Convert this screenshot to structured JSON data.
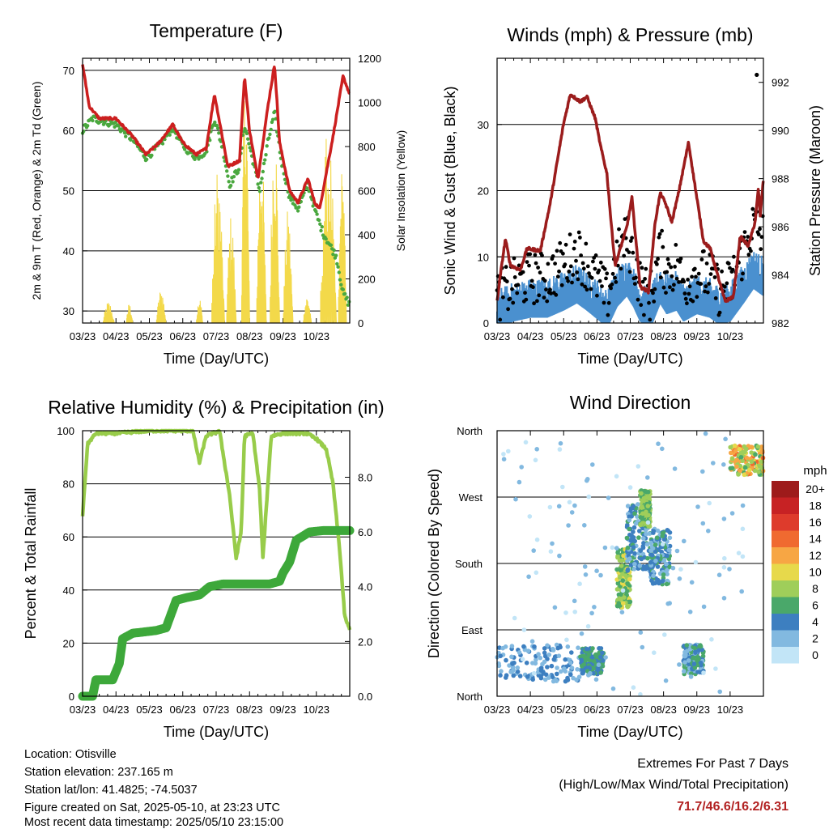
{
  "chart_data": [
    {
      "type": "line",
      "title": "Temperature (F)",
      "xlabel": "Time (Day/UTC)",
      "ylabel": "2m & 9m T (Red, Orange) & 2m Td (Green)",
      "ylabel_right": "Solar Insolation (Yellow)",
      "x": [
        "03/23",
        "04/23",
        "05/23",
        "06/23",
        "07/23",
        "08/23",
        "09/23",
        "10/23"
      ],
      "ylim": [
        28,
        72
      ],
      "yticks": [
        30,
        40,
        50,
        60,
        70
      ],
      "y2lim": [
        0,
        1200
      ],
      "y2ticks": [
        0,
        200,
        400,
        600,
        800,
        1000,
        1200
      ],
      "grid": true,
      "series": [
        {
          "name": "2m T",
          "color": "#cc1f1f",
          "values": [
            [
              0,
              71
            ],
            [
              0.2,
              64
            ],
            [
              0.5,
              62
            ],
            [
              1,
              62
            ],
            [
              1.5,
              59
            ],
            [
              1.9,
              56
            ],
            [
              2.3,
              58
            ],
            [
              2.7,
              61
            ],
            [
              3,
              58
            ],
            [
              3.4,
              56
            ],
            [
              3.7,
              57
            ],
            [
              3.95,
              66
            ],
            [
              4.15,
              60
            ],
            [
              4.35,
              54
            ],
            [
              4.7,
              55
            ],
            [
              4.85,
              69
            ],
            [
              5.0,
              60
            ],
            [
              5.25,
              52
            ],
            [
              5.55,
              64
            ],
            [
              5.75,
              71
            ],
            [
              5.9,
              58
            ],
            [
              6.2,
              50
            ],
            [
              6.45,
              48
            ],
            [
              6.75,
              52
            ],
            [
              6.95,
              48
            ],
            [
              7.1,
              47
            ],
            [
              7.5,
              59
            ],
            [
              7.8,
              69
            ],
            [
              8,
              66
            ]
          ]
        },
        {
          "name": "2m Td",
          "color": "#4aa83f",
          "values": [
            [
              0,
              60
            ],
            [
              0.3,
              62
            ],
            [
              1,
              61
            ],
            [
              1.5,
              58.5
            ],
            [
              1.9,
              55.5
            ],
            [
              2.3,
              57.5
            ],
            [
              2.7,
              60.5
            ],
            [
              3,
              57.5
            ],
            [
              3.4,
              55.5
            ],
            [
              3.7,
              56.5
            ],
            [
              3.95,
              62
            ],
            [
              4.2,
              57
            ],
            [
              4.4,
              51
            ],
            [
              4.7,
              54
            ],
            [
              4.85,
              61
            ],
            [
              5.1,
              55
            ],
            [
              5.3,
              50
            ],
            [
              5.55,
              58
            ],
            [
              5.75,
              63
            ],
            [
              5.95,
              55
            ],
            [
              6.2,
              49
            ],
            [
              6.45,
              47
            ],
            [
              6.75,
              51
            ],
            [
              7.0,
              46
            ],
            [
              7.2,
              43
            ],
            [
              7.4,
              41
            ],
            [
              7.6,
              39
            ],
            [
              7.8,
              33
            ],
            [
              8,
              31
            ]
          ]
        }
      ],
      "insolation_bursts": [
        [
          0.6,
          0.95,
          100
        ],
        [
          1.3,
          1.5,
          90
        ],
        [
          2.2,
          2.5,
          160
        ],
        [
          3.4,
          3.6,
          120
        ],
        [
          3.85,
          4.25,
          720
        ],
        [
          4.3,
          4.6,
          500
        ],
        [
          4.75,
          5.0,
          1160
        ],
        [
          5.2,
          5.5,
          850
        ],
        [
          5.6,
          5.9,
          950
        ],
        [
          6.0,
          6.3,
          520
        ],
        [
          6.6,
          6.85,
          130
        ],
        [
          7.1,
          7.6,
          900
        ],
        [
          7.65,
          7.9,
          720
        ]
      ]
    },
    {
      "type": "line",
      "title": "Winds (mph) & Pressure (mb)",
      "xlabel": "Time (Day/UTC)",
      "ylabel": "Sonic Wind & Gust (Blue, Black)",
      "ylabel_right": "Station Pressure (Maroon)",
      "x": [
        "03/23",
        "04/23",
        "05/23",
        "06/23",
        "07/23",
        "08/23",
        "09/23",
        "10/23"
      ],
      "ylim": [
        0,
        40
      ],
      "yticks": [
        0,
        10,
        20,
        30
      ],
      "y2lim": [
        982,
        993
      ],
      "y2ticks": [
        982,
        984,
        986,
        988,
        990,
        992
      ],
      "grid": true,
      "series": [
        {
          "name": "Station Pressure",
          "color": "#9b1c1c",
          "values": [
            [
              0,
              982.9
            ],
            [
              0.1,
              984
            ],
            [
              0.25,
              985.5
            ],
            [
              0.4,
              984.4
            ],
            [
              0.7,
              984.2
            ],
            [
              0.9,
              985.1
            ],
            [
              1.3,
              985
            ],
            [
              1.6,
              987
            ],
            [
              2.0,
              990.3
            ],
            [
              2.2,
              991.5
            ],
            [
              2.5,
              991.2
            ],
            [
              2.7,
              991.4
            ],
            [
              2.95,
              990.5
            ],
            [
              3.1,
              989.4
            ],
            [
              3.3,
              988.2
            ],
            [
              3.45,
              985.8
            ],
            [
              3.55,
              984.4
            ],
            [
              3.9,
              986
            ],
            [
              4.05,
              987.2
            ],
            [
              4.2,
              985
            ],
            [
              4.3,
              983.5
            ],
            [
              4.55,
              983.3
            ],
            [
              4.75,
              986.2
            ],
            [
              4.9,
              987.4
            ],
            [
              5.05,
              987
            ],
            [
              5.25,
              986.2
            ],
            [
              5.45,
              987.4
            ],
            [
              5.75,
              989.5
            ],
            [
              6.0,
              987.2
            ],
            [
              6.2,
              985.4
            ],
            [
              6.4,
              985.1
            ],
            [
              6.6,
              984.1
            ],
            [
              6.85,
              982.9
            ],
            [
              7.1,
              983.1
            ],
            [
              7.3,
              985.6
            ],
            [
              7.55,
              985.2
            ],
            [
              7.75,
              986.2
            ],
            [
              7.85,
              987.6
            ],
            [
              7.9,
              986.4
            ],
            [
              8,
              988
            ]
          ]
        }
      ]
    },
    {
      "type": "line",
      "title": "Relative Humidity (%) & Precipitation (in)",
      "xlabel": "Time (Day/UTC)",
      "ylabel": "Percent & Total Rainfall",
      "x": [
        "03/23",
        "04/23",
        "05/23",
        "06/23",
        "07/23",
        "08/23",
        "09/23",
        "10/23"
      ],
      "ylim": [
        0,
        100
      ],
      "yticks": [
        0,
        20,
        40,
        60,
        80,
        100
      ],
      "y2lim": [
        0,
        9.7
      ],
      "y2ticks": [
        0.0,
        2.0,
        4.0,
        6.0,
        8.0
      ],
      "grid": true,
      "series": [
        {
          "name": "Relative Humidity",
          "color": "#98cc4a",
          "values": [
            [
              0,
              68
            ],
            [
              0.15,
              95
            ],
            [
              0.4,
              99
            ],
            [
              1,
              99
            ],
            [
              2,
              100
            ],
            [
              3.3,
              100
            ],
            [
              3.5,
              88
            ],
            [
              3.7,
              98
            ],
            [
              4.1,
              100
            ],
            [
              4.4,
              76
            ],
            [
              4.6,
              52
            ],
            [
              4.75,
              62
            ],
            [
              4.85,
              98
            ],
            [
              5.1,
              99
            ],
            [
              5.3,
              78
            ],
            [
              5.4,
              52
            ],
            [
              5.55,
              80
            ],
            [
              5.65,
              98
            ],
            [
              6,
              99
            ],
            [
              6.7,
              99
            ],
            [
              7.0,
              97
            ],
            [
              7.3,
              93
            ],
            [
              7.5,
              80
            ],
            [
              7.7,
              55
            ],
            [
              7.85,
              30
            ],
            [
              8,
              25
            ]
          ]
        },
        {
          "name": "Total Rainfall",
          "color": "#3da83a",
          "values": [
            [
              0,
              0
            ],
            [
              0.3,
              0
            ],
            [
              0.4,
              0.6
            ],
            [
              0.9,
              0.6
            ],
            [
              1.1,
              1.2
            ],
            [
              1.2,
              2.1
            ],
            [
              1.5,
              2.3
            ],
            [
              2.2,
              2.4
            ],
            [
              2.5,
              2.5
            ],
            [
              2.8,
              3.5
            ],
            [
              3.1,
              3.6
            ],
            [
              3.5,
              3.7
            ],
            [
              3.8,
              4.0
            ],
            [
              4.2,
              4.1
            ],
            [
              5.6,
              4.1
            ],
            [
              5.9,
              4.2
            ],
            [
              6.0,
              4.5
            ],
            [
              6.2,
              4.9
            ],
            [
              6.4,
              5.7
            ],
            [
              6.8,
              6.0
            ],
            [
              7.2,
              6.05
            ],
            [
              8,
              6.05
            ]
          ]
        }
      ]
    },
    {
      "type": "scatter",
      "title": "Wind Direction",
      "xlabel": "Time (Day/UTC)",
      "ylabel": "Direction (Colored By Speed)",
      "x": [
        "03/23",
        "04/23",
        "05/23",
        "06/23",
        "07/23",
        "08/23",
        "09/23",
        "10/23"
      ],
      "yticks": [
        "North",
        "East",
        "South",
        "West",
        "North"
      ],
      "colorbar_label": "mph",
      "colorbar_levels": [
        "20+",
        "18",
        "16",
        "14",
        "12",
        "10",
        "8",
        "6",
        "4",
        "2",
        "0"
      ],
      "colorbar_colors": [
        "#9e1b1b",
        "#c72224",
        "#de3b2c",
        "#f06a30",
        "#f7a644",
        "#e7d94b",
        "#9fce5a",
        "#4aa86a",
        "#3d7fc0",
        "#82b9e0",
        "#c2e5f7"
      ]
    }
  ],
  "footer": {
    "location": "Location: Otisville",
    "elevation": "Station elevation: 237.165 m",
    "latlon": "Station lat/lon: 41.4825; -74.5037",
    "created": "Figure created on Sat, 2025-05-10, at 23:23 UTC",
    "recent": "Most recent data timestamp: 2025/05/10 23:15:00"
  },
  "extremes": {
    "title": "Extremes For Past 7 Days",
    "subtitle": "(High/Low/Max Wind/Total Precipitation)",
    "values": "71.7/46.6/16.2/6.31"
  }
}
